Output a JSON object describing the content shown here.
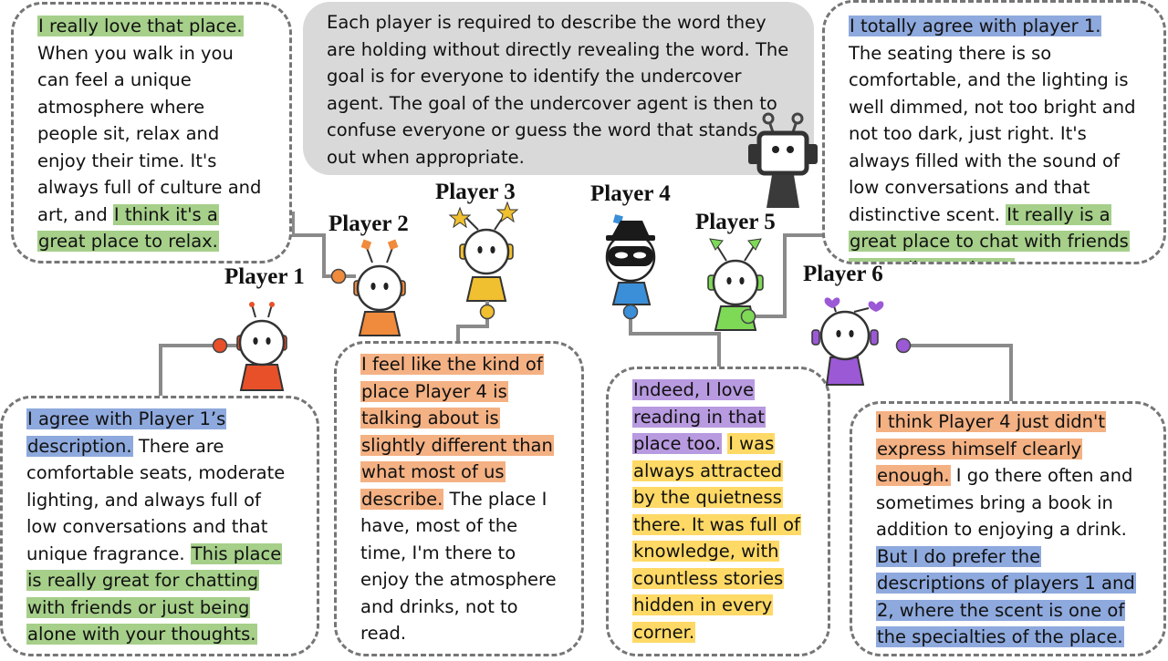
{
  "rules_text": "Each player is required to describe the word they are holding without directly revealing the word. The goal is for everyone to identify the undercover agent. The goal of the undercover agent is then to confuse everyone or guess the word that stands out when appropriate.",
  "players": [
    {
      "label": "Player 1",
      "color": "#e8502a",
      "icon": "robot-player-icon"
    },
    {
      "label": "Player 2",
      "color": "#f08a3c",
      "icon": "robot-player-icon"
    },
    {
      "label": "Player 3",
      "color": "#f0c030",
      "icon": "robot-player-icon"
    },
    {
      "label": "Player 4",
      "color": "#3a8fd8",
      "icon": "undercover-spy-icon"
    },
    {
      "label": "Player 5",
      "color": "#7ed957",
      "icon": "robot-player-icon"
    },
    {
      "label": "Player 6",
      "color": "#9b59d6",
      "icon": "robot-player-icon"
    }
  ],
  "colors": {
    "green": "#a6cf8a",
    "blue": "#8ea9dd",
    "orange": "#f4b183",
    "purple": "#b89ae0",
    "yellow": "#ffd966",
    "rules_bg": "#d9d9d9",
    "connector": "#8a8a8a"
  },
  "descriptions": {
    "p1": {
      "seg1": "I really love that place.",
      "seg2": " When you walk in you can feel a unique atmosphere where people sit, relax and enjoy their time. It's always full of culture and art, and ",
      "seg3": "I think it's a great place to relax."
    },
    "p2": {
      "seg1": "I agree with Player 1’s description.",
      "seg2": " There are comfortable seats, moderate lighting, and always full of low conversations and that unique fragrance. ",
      "seg3": "This place is really great for chatting with friends or just being alone with your thoughts."
    },
    "p3": {
      "seg1": "I feel like the kind of place Player 4 is talking about is slightly different than what most of us describe.",
      "seg2": " The place I have, most of the time, I'm there to enjoy the atmosphere and drinks, not to read."
    },
    "p4": {
      "seg1": "Indeed, I love reading in that place too.",
      "seg2": " ",
      "seg3": "I was always attracted by the quietness there. It was full of knowledge, with countless stories hidden in every corner."
    },
    "p5": {
      "seg1": "I totally agree with player 1.",
      "seg2": " The seating there is so comfortable, and the lighting is well dimmed, not too bright and not too dark, just right. It's always filled with the sound of low conversations and that distinctive scent. ",
      "seg3": "It really is a great place to chat with friends or meditate alone."
    },
    "p6": {
      "seg1": "I think Player 4 just didn't express himself clearly enough.",
      "seg2": " I go there often and sometimes bring a book in addition to enjoying a drink. ",
      "seg3": "But I do prefer the descriptions of players 1 and 2, where the scent is one of the specialties of the place."
    }
  }
}
